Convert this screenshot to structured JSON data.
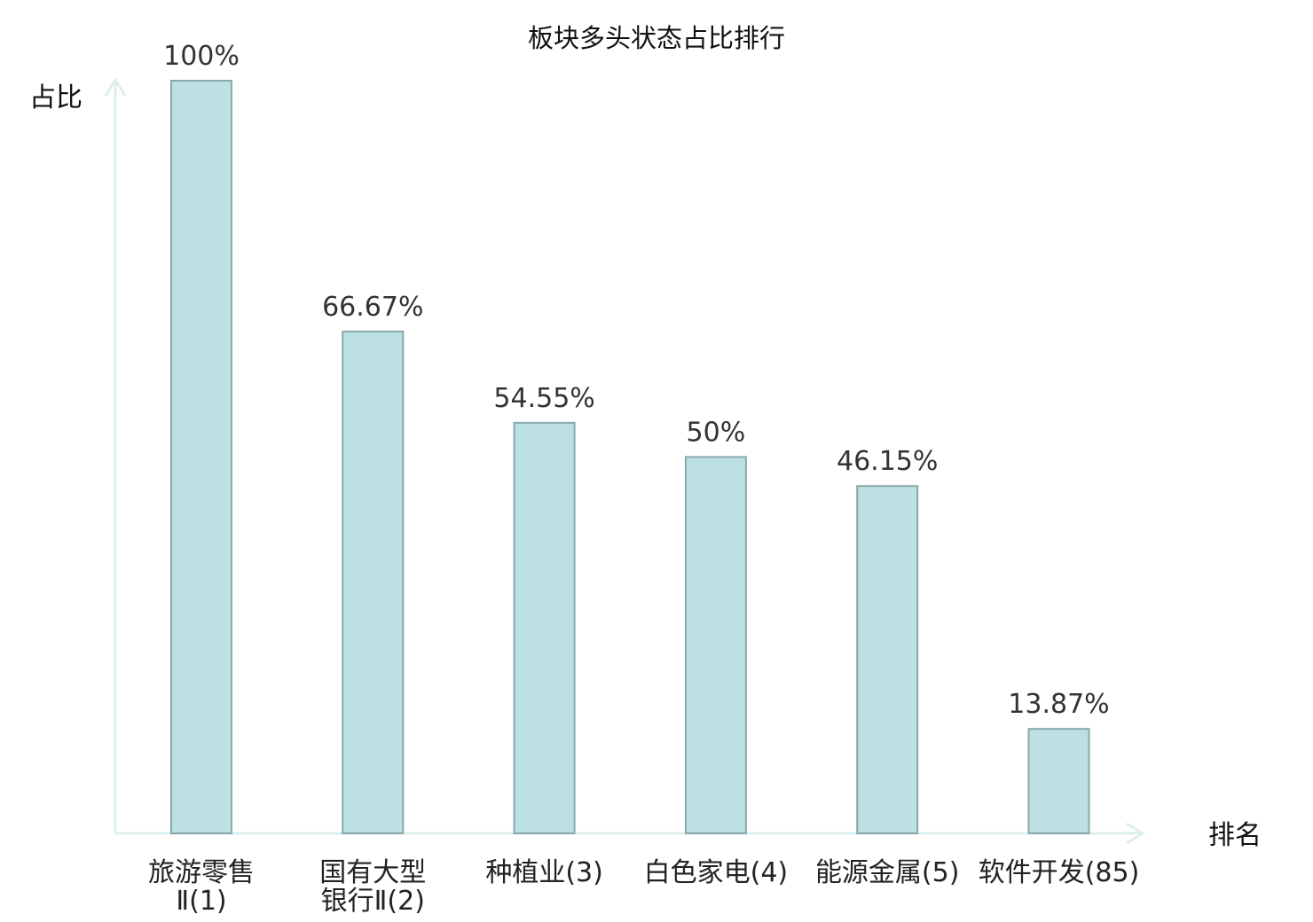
{
  "chart_data": {
    "type": "bar",
    "title": "板块多头状态占比排行",
    "ylabel": "占比",
    "xlabel": "排名",
    "ylim": [
      0,
      100
    ],
    "grid": false,
    "categories": [
      {
        "lines": [
          "旅游零售",
          "Ⅱ(1)"
        ],
        "highlight": false
      },
      {
        "lines": [
          "国有大型",
          "银行Ⅱ(2)"
        ],
        "highlight": false
      },
      {
        "lines": [
          "种植业(3)"
        ],
        "highlight": false
      },
      {
        "lines": [
          "白色家电(4)"
        ],
        "highlight": false
      },
      {
        "lines": [
          "能源金属(5)"
        ],
        "highlight": false
      },
      {
        "lines": [
          "软件开发(85)"
        ],
        "highlight": true
      }
    ],
    "values": [
      100,
      66.67,
      54.55,
      50,
      46.15,
      13.87
    ],
    "data_labels": [
      "100%",
      "66.67%",
      "54.55%",
      "50%",
      "46.15%",
      "13.87%"
    ],
    "colors": {
      "bar_fill": "#bde0e3",
      "bar_stroke": "#8aa9ab",
      "axis": "#dcefee",
      "highlight_text": "#e02020",
      "label_text": "#222222",
      "value_text": "#333333"
    }
  }
}
